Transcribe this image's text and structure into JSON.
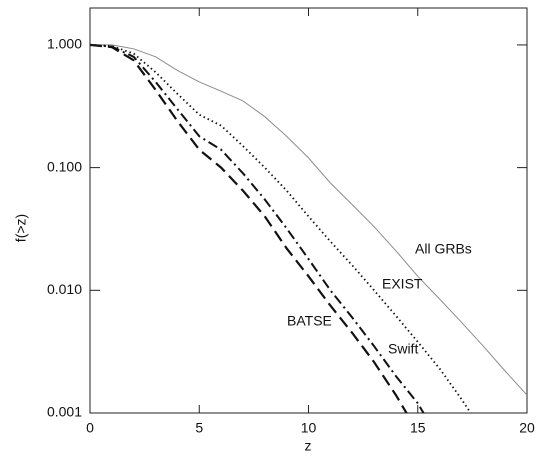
{
  "chart_data": {
    "type": "line",
    "xlabel": "z",
    "ylabel": "f(>z)",
    "x": [
      0,
      1,
      2,
      3,
      4,
      5,
      6,
      7,
      8,
      9,
      10,
      11,
      12,
      13,
      14,
      15,
      16,
      17,
      18,
      19,
      20
    ],
    "series": [
      {
        "name": "All GRBs",
        "color": "#8c8c8c",
        "dash": "solid",
        "values": [
          1.0,
          1.0,
          0.93,
          0.8,
          0.62,
          0.5,
          0.42,
          0.35,
          0.26,
          0.18,
          0.12,
          0.075,
          0.05,
          0.033,
          0.021,
          0.013,
          0.0085,
          0.0055,
          0.0035,
          0.0022,
          0.0014
        ]
      },
      {
        "name": "EXIST",
        "color": "#111111",
        "dash": "dotted",
        "values": [
          1.0,
          0.98,
          0.85,
          0.6,
          0.4,
          0.27,
          0.22,
          0.15,
          0.1,
          0.065,
          0.04,
          0.025,
          0.016,
          0.01,
          0.0062,
          0.0038,
          0.0023,
          0.0013,
          0.0007,
          null,
          null
        ]
      },
      {
        "name": "Swift",
        "color": "#111111",
        "dash": "dashdot",
        "values": [
          1.0,
          0.97,
          0.8,
          0.5,
          0.3,
          0.18,
          0.14,
          0.09,
          0.055,
          0.032,
          0.018,
          0.01,
          0.006,
          0.0035,
          0.002,
          0.0012,
          0.0006,
          null,
          null,
          null,
          null
        ]
      },
      {
        "name": "BATSE",
        "color": "#111111",
        "dash": "dashed",
        "values": [
          1.0,
          0.96,
          0.75,
          0.43,
          0.24,
          0.14,
          0.1,
          0.065,
          0.04,
          0.022,
          0.013,
          0.0075,
          0.0045,
          0.0026,
          0.0014,
          0.0007,
          null,
          null,
          null,
          null,
          null
        ]
      }
    ],
    "xlim": [
      0,
      20
    ],
    "xticks": [
      0,
      5,
      10,
      15,
      20
    ],
    "ylim": [
      0.001,
      2
    ],
    "yticks": [
      {
        "value": 1,
        "label": "1.000"
      },
      {
        "value": 0.1,
        "label": "0.100"
      },
      {
        "value": 0.01,
        "label": "0.010"
      },
      {
        "value": 0.001,
        "label": "0.001"
      }
    ],
    "log_y": true
  }
}
